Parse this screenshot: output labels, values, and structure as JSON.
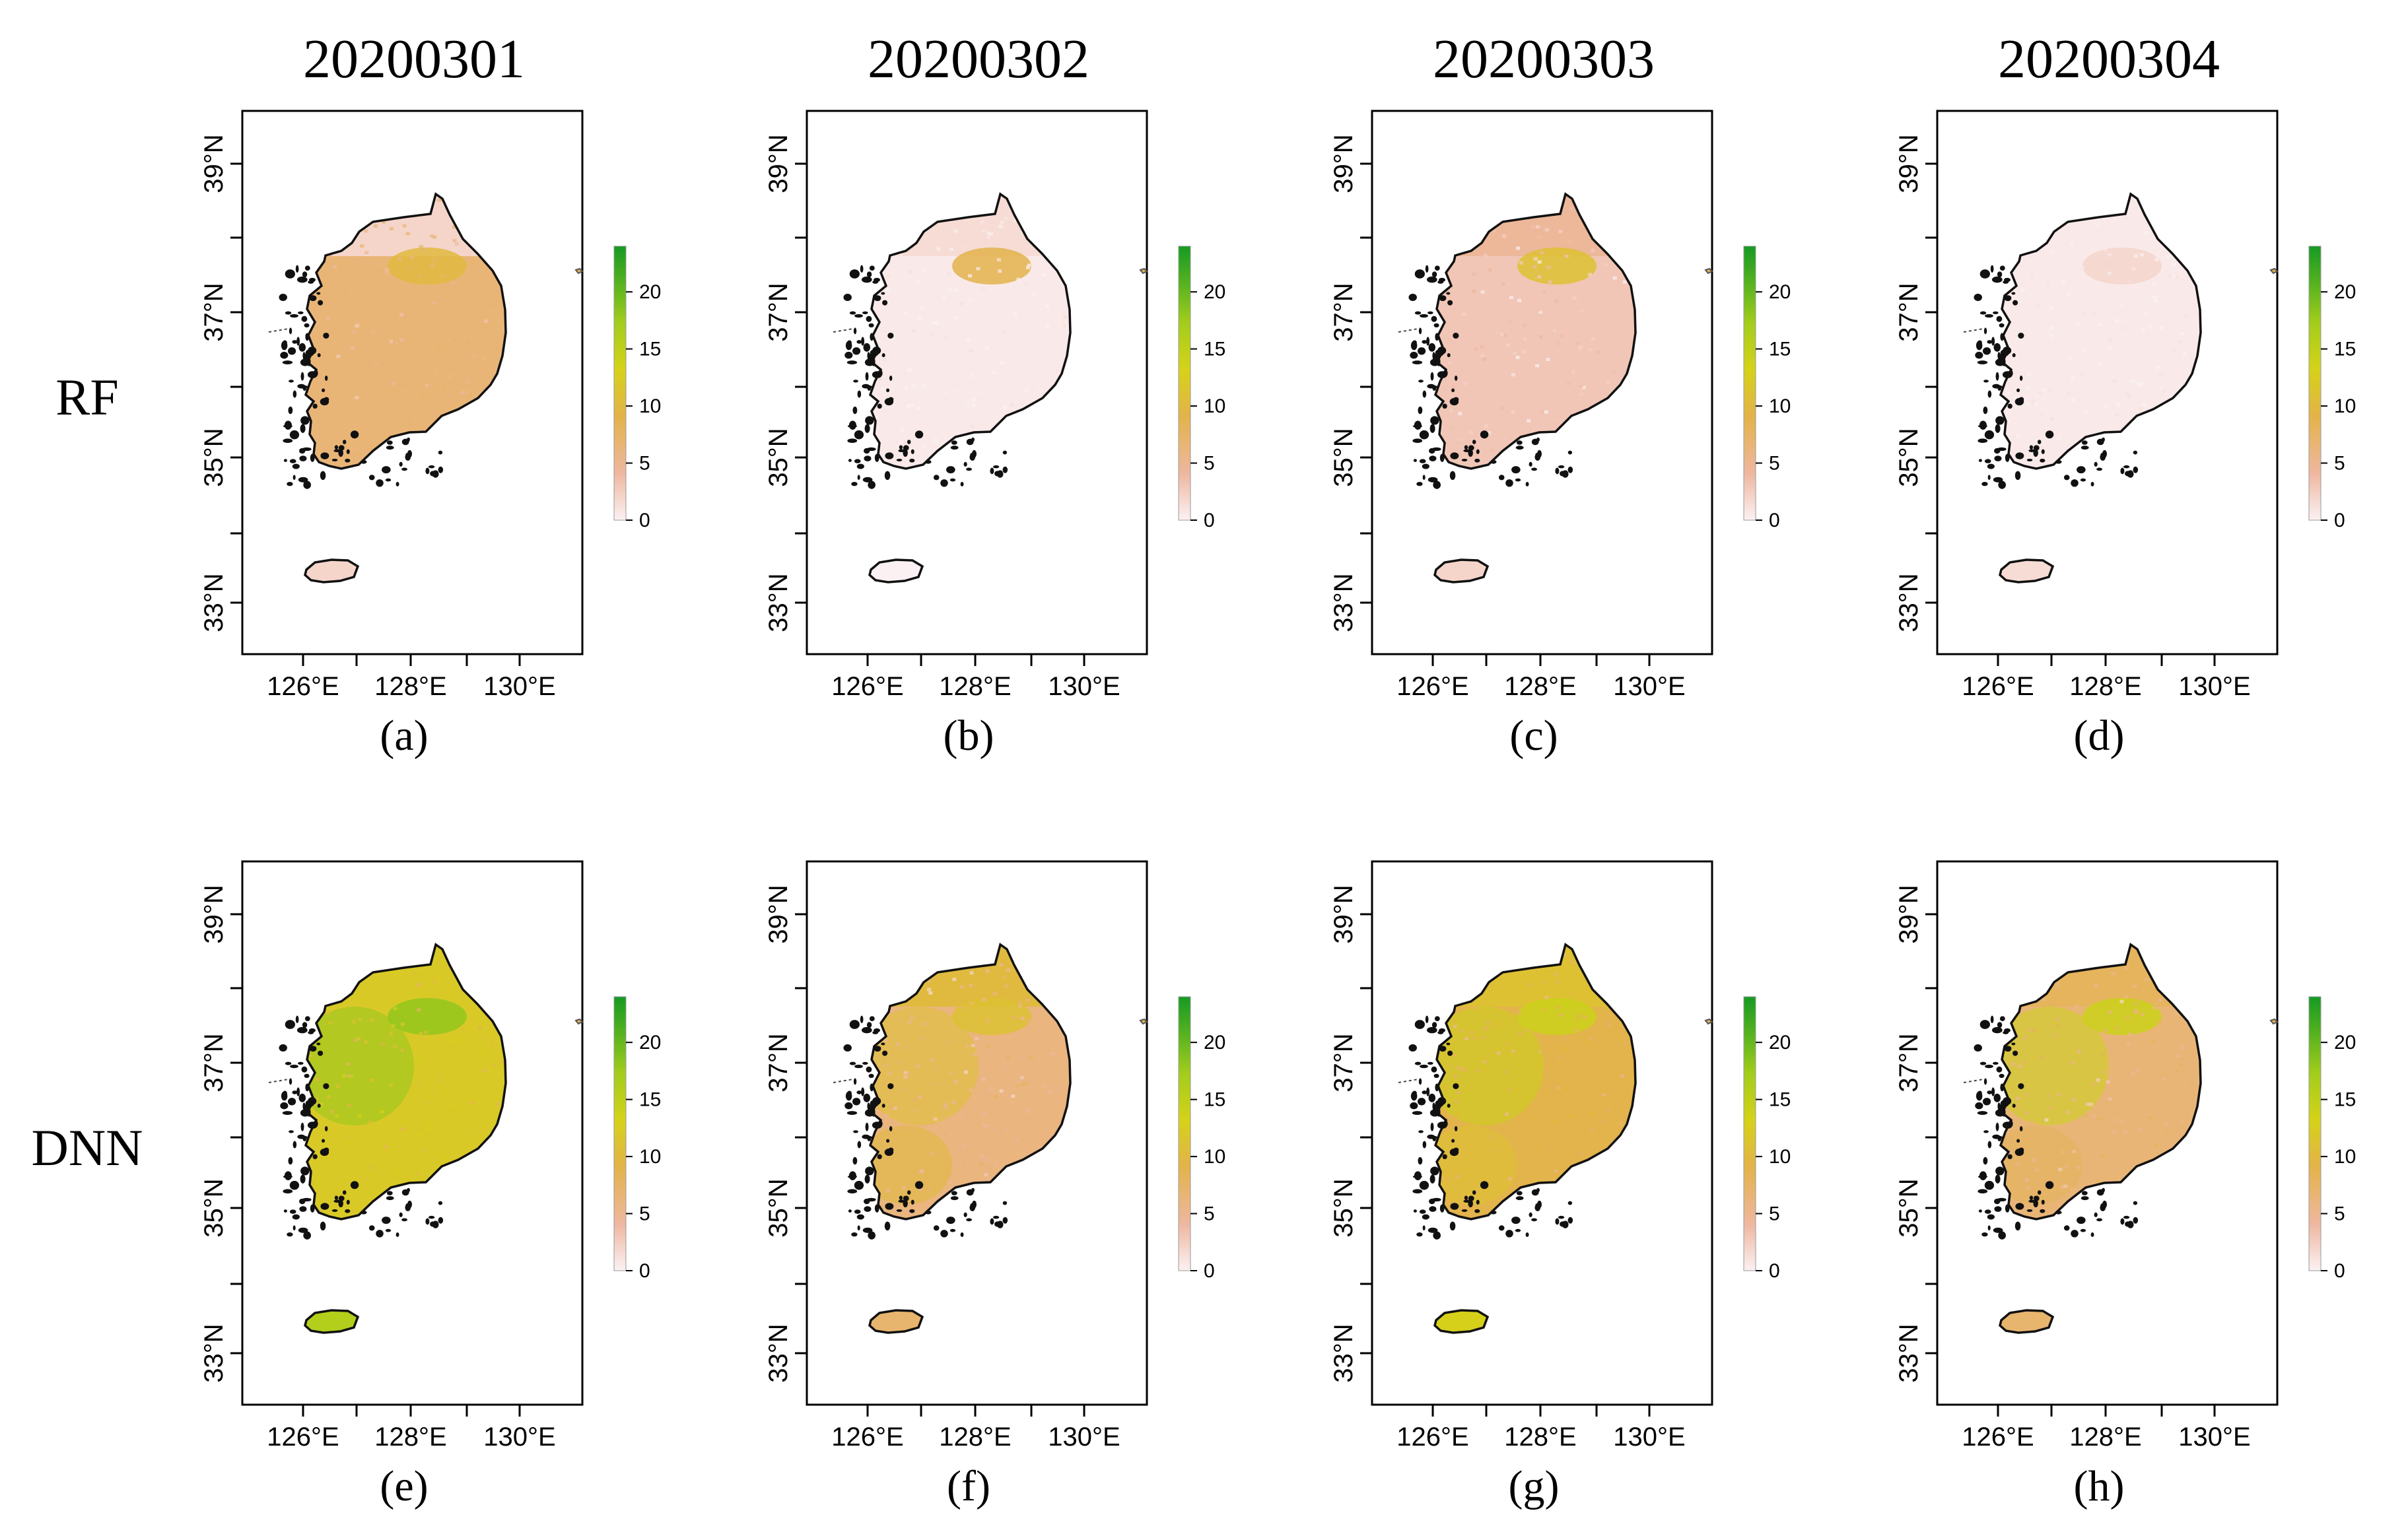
{
  "figure": {
    "dates": [
      "20200301",
      "20200302",
      "20200303",
      "20200304"
    ],
    "rows": [
      "RF",
      "DNN"
    ],
    "lat_ticks": [
      "39°N",
      "37°N",
      "35°N",
      "33°N"
    ],
    "lon_ticks": [
      "126°E",
      "128°E",
      "130°E"
    ],
    "colorbar_ticks": [
      "20",
      "15",
      "10",
      "5",
      "0"
    ],
    "colorbar_range": [
      0,
      24
    ],
    "colorbar_colors": [
      "#fbf1f3",
      "#eeb7a0",
      "#e3b34a",
      "#d5d219",
      "#a3cd1c",
      "#58b31f",
      "#159a23"
    ],
    "panels": [
      {
        "label": "(a)",
        "model": "RF",
        "date": "20200301",
        "mainland_value": 6.5,
        "north_band_value": 2,
        "jeju_value": 2,
        "hotspot_value": 10,
        "texture": 0.15
      },
      {
        "label": "(b)",
        "model": "RF",
        "date": "20200302",
        "mainland_value": 0.5,
        "north_band_value": 1.5,
        "jeju_value": 0,
        "hotspot_value": 9,
        "texture": 0.12
      },
      {
        "label": "(c)",
        "model": "RF",
        "date": "20200303",
        "mainland_value": 3,
        "north_band_value": 4.5,
        "jeju_value": 2,
        "hotspot_value": 11,
        "texture": 0.15
      },
      {
        "label": "(d)",
        "model": "RF",
        "date": "20200304",
        "mainland_value": 0.5,
        "north_band_value": 0.5,
        "jeju_value": 1.5,
        "hotspot_value": 2,
        "texture": 0.1
      },
      {
        "label": "(e)",
        "model": "DNN",
        "date": "20200301",
        "mainland_value": 12,
        "north_band_value": 12,
        "jeju_value": 16,
        "hotspot_value": 18,
        "texture": 0.25
      },
      {
        "label": "(f)",
        "model": "DNN",
        "date": "20200302",
        "mainland_value": 6,
        "north_band_value": 10,
        "jeju_value": 7,
        "hotspot_value": 11,
        "texture": 0.25
      },
      {
        "label": "(g)",
        "model": "DNN",
        "date": "20200303",
        "mainland_value": 9,
        "north_band_value": 11,
        "jeju_value": 13,
        "hotspot_value": 14,
        "texture": 0.25
      },
      {
        "label": "(h)",
        "model": "DNN",
        "date": "20200304",
        "mainland_value": 6.5,
        "north_band_value": 8,
        "jeju_value": 7,
        "hotspot_value": 14,
        "texture": 0.25
      }
    ]
  }
}
